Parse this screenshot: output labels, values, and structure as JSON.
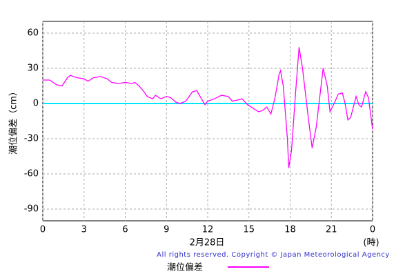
{
  "chart_data": {
    "type": "line",
    "y_label": "潮位偏差（cm）",
    "x_label": "2月28日",
    "x_unit": "(時)",
    "copyright": "All rights reserved. Copyright © Japan Meteorological Agency",
    "xlim": [
      0,
      24
    ],
    "xticks": [
      0,
      3,
      6,
      9,
      12,
      15,
      18,
      21,
      {
        "value": 24,
        "label": "0"
      }
    ],
    "ylim": [
      -100,
      70
    ],
    "yticks": [
      -90,
      -60,
      -30,
      0,
      30,
      60
    ],
    "grid": true,
    "reference_line": {
      "value": 0,
      "color": "#00e5ff"
    },
    "series": [
      {
        "name": "潮位偏差",
        "color": "#ff00ff",
        "x": [
          0,
          0.5,
          1,
          1.4,
          1.8,
          2,
          2.5,
          3,
          3.3,
          3.7,
          4.2,
          4.7,
          5,
          5.5,
          6,
          6.5,
          6.7,
          7,
          7.3,
          7.6,
          8,
          8.2,
          8.6,
          9,
          9.3,
          9.7,
          10,
          10.4,
          10.9,
          11.2,
          11.6,
          11.8,
          12,
          12.5,
          13,
          13.5,
          13.8,
          14.2,
          14.5,
          14.9,
          15.3,
          15.7,
          16,
          16.3,
          16.6,
          16.9,
          17.2,
          17.3,
          17.5,
          17.8,
          17.9,
          18.1,
          18.4,
          18.65,
          18.9,
          19.3,
          19.6,
          19.9,
          20.3,
          20.4,
          20.7,
          20.9,
          21.2,
          21.5,
          21.8,
          22,
          22.2,
          22.4,
          22.8,
          23,
          23.2,
          23.4,
          23.5,
          23.7,
          24
        ],
        "values": [
          20,
          20,
          16,
          15,
          22,
          24,
          22,
          21,
          19,
          22,
          23,
          21,
          18,
          17,
          18,
          17,
          18,
          15,
          11,
          6,
          4,
          7,
          4,
          6,
          5,
          1,
          0,
          2,
          10,
          11,
          3,
          -1,
          2,
          4,
          7,
          6,
          2,
          3,
          4,
          -1,
          -4,
          -7,
          -6,
          -3,
          -9,
          5,
          25,
          28,
          15,
          -30,
          -55,
          -40,
          10,
          48,
          30,
          -10,
          -38,
          -20,
          20,
          30,
          15,
          -7,
          0,
          8,
          9,
          0,
          -14,
          -12,
          6,
          -1,
          -3,
          6,
          10,
          5,
          -22
        ]
      }
    ]
  }
}
